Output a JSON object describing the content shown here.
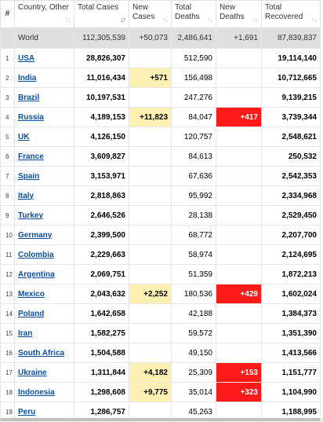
{
  "header": {
    "index": "#",
    "country": "Country, Other",
    "total_cases": "Total Cases",
    "new_cases": "New Cases",
    "total_deaths": "Total Deaths",
    "new_deaths": "New Deaths",
    "total_recovered": "Total Recovered"
  },
  "world": {
    "country": "World",
    "total_cases": "112,305,539",
    "new_cases": "+50,073",
    "total_deaths": "2,486,641",
    "new_deaths": "+1,691",
    "total_recovered": "87,839,837"
  },
  "rows": [
    {
      "index": "1",
      "country": "USA",
      "total_cases": "28,826,307",
      "new_cases": "",
      "total_deaths": "512,590",
      "new_deaths": "",
      "total_recovered": "19,114,140"
    },
    {
      "index": "2",
      "country": "India",
      "total_cases": "11,016,434",
      "new_cases": "+571",
      "total_deaths": "156,498",
      "new_deaths": "",
      "total_recovered": "10,712,665"
    },
    {
      "index": "3",
      "country": "Brazil",
      "total_cases": "10,197,531",
      "new_cases": "",
      "total_deaths": "247,276",
      "new_deaths": "",
      "total_recovered": "9,139,215"
    },
    {
      "index": "4",
      "country": "Russia",
      "total_cases": "4,189,153",
      "new_cases": "+11,823",
      "total_deaths": "84,047",
      "new_deaths": "+417",
      "total_recovered": "3,739,344"
    },
    {
      "index": "5",
      "country": "UK",
      "total_cases": "4,126,150",
      "new_cases": "",
      "total_deaths": "120,757",
      "new_deaths": "",
      "total_recovered": "2,548,621"
    },
    {
      "index": "6",
      "country": "France",
      "total_cases": "3,609,827",
      "new_cases": "",
      "total_deaths": "84,613",
      "new_deaths": "",
      "total_recovered": "250,532"
    },
    {
      "index": "7",
      "country": "Spain",
      "total_cases": "3,153,971",
      "new_cases": "",
      "total_deaths": "67,636",
      "new_deaths": "",
      "total_recovered": "2,542,353"
    },
    {
      "index": "8",
      "country": "Italy",
      "total_cases": "2,818,863",
      "new_cases": "",
      "total_deaths": "95,992",
      "new_deaths": "",
      "total_recovered": "2,334,968"
    },
    {
      "index": "9",
      "country": "Turkey",
      "total_cases": "2,646,526",
      "new_cases": "",
      "total_deaths": "28,138",
      "new_deaths": "",
      "total_recovered": "2,529,450"
    },
    {
      "index": "10",
      "country": "Germany",
      "total_cases": "2,399,500",
      "new_cases": "",
      "total_deaths": "68,772",
      "new_deaths": "",
      "total_recovered": "2,207,700"
    },
    {
      "index": "11",
      "country": "Colombia",
      "total_cases": "2,229,663",
      "new_cases": "",
      "total_deaths": "58,974",
      "new_deaths": "",
      "total_recovered": "2,124,695"
    },
    {
      "index": "12",
      "country": "Argentina",
      "total_cases": "2,069,751",
      "new_cases": "",
      "total_deaths": "51,359",
      "new_deaths": "",
      "total_recovered": "1,872,213"
    },
    {
      "index": "13",
      "country": "Mexico",
      "total_cases": "2,043,632",
      "new_cases": "+2,252",
      "total_deaths": "180,536",
      "new_deaths": "+429",
      "total_recovered": "1,602,024"
    },
    {
      "index": "14",
      "country": "Poland",
      "total_cases": "1,642,658",
      "new_cases": "",
      "total_deaths": "42,188",
      "new_deaths": "",
      "total_recovered": "1,384,373"
    },
    {
      "index": "15",
      "country": "Iran",
      "total_cases": "1,582,275",
      "new_cases": "",
      "total_deaths": "59,572",
      "new_deaths": "",
      "total_recovered": "1,351,390"
    },
    {
      "index": "16",
      "country": "South Africa",
      "total_cases": "1,504,588",
      "new_cases": "",
      "total_deaths": "49,150",
      "new_deaths": "",
      "total_recovered": "1,413,566"
    },
    {
      "index": "17",
      "country": "Ukraine",
      "total_cases": "1,311,844",
      "new_cases": "+4,182",
      "total_deaths": "25,309",
      "new_deaths": "+153",
      "total_recovered": "1,151,777"
    },
    {
      "index": "18",
      "country": "Indonesia",
      "total_cases": "1,298,608",
      "new_cases": "+9,775",
      "total_deaths": "35,014",
      "new_deaths": "+323",
      "total_recovered": "1,104,990"
    },
    {
      "index": "19",
      "country": "Peru",
      "total_cases": "1,286,757",
      "new_cases": "",
      "total_deaths": "45,263",
      "new_deaths": "",
      "total_recovered": "1,188,995"
    }
  ],
  "colors": {
    "link": "#0a4fa3",
    "new_cases_highlight": "#fdf0b3",
    "new_deaths_highlight": "#ff1a1a",
    "world_row": "#dfdfdf"
  },
  "icons": {
    "sort": "sort-arrows-icon",
    "sort_active": "sort-descending-icon"
  }
}
